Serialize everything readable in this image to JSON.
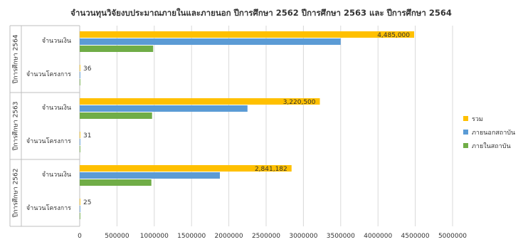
{
  "chart_data": {
    "type": "bar",
    "orientation": "horizontal",
    "title": "จำนวนทุนวิจัยงบประมาณภายในและภายนอก ปีการศึกษา 2562 ปีการศึกษา 2563 และ ปีการศึกษา 2564",
    "xlim": [
      0,
      5000000
    ],
    "x_ticks": [
      "0",
      "500000",
      "1000000",
      "1500000",
      "2000000",
      "2500000",
      "3000000",
      "3500000",
      "4000000",
      "4500000",
      "5000000"
    ],
    "grid": true,
    "legend_position": "right",
    "groups": [
      {
        "year_label": "ปีการศึกษา 2564",
        "rows": [
          {
            "label": "จำนวนเงิน",
            "values": {
              "total": 4485000,
              "external": 3500000,
              "internal": 985000
            },
            "data_label": "4,485,000"
          },
          {
            "label": "จำนวนโครงการ",
            "values": {
              "total": 36,
              "external": 0,
              "internal": 0
            },
            "data_label": "36"
          }
        ]
      },
      {
        "year_label": "ปีการศึกษา 2563",
        "rows": [
          {
            "label": "จำนวนเงิน",
            "values": {
              "total": 3220500,
              "external": 2250000,
              "internal": 970500
            },
            "data_label": "3,220,500"
          },
          {
            "label": "จำนวนโครงการ",
            "values": {
              "total": 31,
              "external": 0,
              "internal": 0
            },
            "data_label": "31"
          }
        ]
      },
      {
        "year_label": "ปีการศึกษา 2562",
        "rows": [
          {
            "label": "จำนวนเงิน",
            "values": {
              "total": 2841182,
              "external": 1880000,
              "internal": 961182
            },
            "data_label": "2,841,182"
          },
          {
            "label": "จำนวนโครงการ",
            "values": {
              "total": 25,
              "external": 0,
              "internal": 0
            },
            "data_label": "25"
          }
        ]
      }
    ],
    "series": [
      {
        "key": "total",
        "name": "รวม",
        "color": "#FFC000"
      },
      {
        "key": "external",
        "name": "ภายนอกสถาบัน",
        "color": "#5B9BD5"
      },
      {
        "key": "internal",
        "name": "ภายในสถาบัน",
        "color": "#70AD47"
      }
    ]
  }
}
